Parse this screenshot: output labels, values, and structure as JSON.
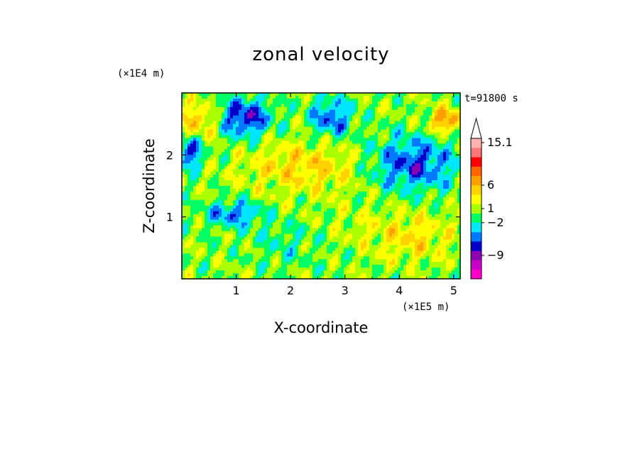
{
  "chart_data": {
    "type": "heatmap",
    "title": "zonal velocity",
    "xlabel": "X-coordinate",
    "ylabel": "Z-coordinate",
    "x_unit": "(×1E5 m)",
    "y_unit": "(×1E4 m)",
    "timestamp": "t=91800 s",
    "xlim": [
      0,
      5.12
    ],
    "ylim": [
      0,
      3.0
    ],
    "x_ticks": [
      1,
      2,
      3,
      4,
      5
    ],
    "y_ticks": [
      1,
      2
    ],
    "x_tick_labels": [
      "1",
      "2",
      "3",
      "4",
      "5"
    ],
    "y_tick_labels": [
      "1",
      "2"
    ],
    "colorbar": {
      "levels_bottom_to_top": [
        {
          "color": "#ff00c8"
        },
        {
          "color": "#c800c8"
        },
        {
          "color": "#8c00b4"
        },
        {
          "color": "#0000c8"
        },
        {
          "color": "#0078ff"
        },
        {
          "color": "#00e6ff"
        },
        {
          "color": "#00ff64"
        },
        {
          "color": "#aaff00"
        },
        {
          "color": "#ffff00"
        },
        {
          "color": "#ffd200"
        },
        {
          "color": "#ffa000"
        },
        {
          "color": "#ff6400"
        },
        {
          "color": "#ff0000"
        },
        {
          "color": "#ff7878"
        },
        {
          "color": "#ffb4b4"
        }
      ],
      "labels": [
        {
          "text": "15.1",
          "value": 15.1
        },
        {
          "text": "6",
          "value": 6
        },
        {
          "text": "1",
          "value": 1
        },
        {
          "text": "−2",
          "value": -2
        },
        {
          "text": "−9",
          "value": -9
        }
      ],
      "extend": "max"
    },
    "field_regions": [
      {
        "name": "upper-left blue jet",
        "x": [
          0.0,
          0.3
        ],
        "z": [
          1.8,
          2.3
        ],
        "value": -7
      },
      {
        "name": "upper blue core",
        "x": [
          0.7,
          1.6
        ],
        "z": [
          2.3,
          2.9
        ],
        "value": -8
      },
      {
        "name": "upper center blue",
        "x": [
          2.4,
          3.1
        ],
        "z": [
          2.3,
          2.9
        ],
        "value": -6
      },
      {
        "name": "right blue band",
        "x": [
          3.4,
          5.1
        ],
        "z": [
          1.4,
          2.3
        ],
        "value": -7
      },
      {
        "name": "orange upper-left",
        "x": [
          0.0,
          0.6
        ],
        "z": [
          2.3,
          2.8
        ],
        "value": 5
      },
      {
        "name": "orange diagonal band",
        "x": [
          1.0,
          3.5
        ],
        "z": [
          1.4,
          2.2
        ],
        "value": 4
      },
      {
        "name": "red upper-right",
        "x": [
          4.6,
          5.1
        ],
        "z": [
          2.4,
          2.7
        ],
        "value": 7
      },
      {
        "name": "yellow lower band",
        "x": [
          2.0,
          5.0
        ],
        "z": [
          0.4,
          1.3
        ],
        "value": 1
      },
      {
        "name": "orange lower-right",
        "x": [
          3.5,
          5.0
        ],
        "z": [
          0.3,
          1.0
        ],
        "value": 3
      },
      {
        "name": "cyan lower-mid",
        "x": [
          1.2,
          2.6
        ],
        "z": [
          0.2,
          1.0
        ],
        "value": -2
      },
      {
        "name": "blue mid-left blobs",
        "x": [
          0.5,
          1.4
        ],
        "z": [
          0.9,
          1.2
        ],
        "value": -6
      }
    ]
  }
}
